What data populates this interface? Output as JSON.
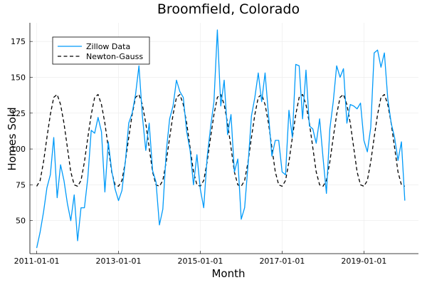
{
  "chart_data": {
    "type": "line",
    "title": "Broomfield, Colorado",
    "xlabel": "Month",
    "ylabel": "Homes Sold",
    "x_ticks": [
      "2011-01-01",
      "2013-01-01",
      "2015-01-01",
      "2017-01-01",
      "2019-01-01"
    ],
    "y_ticks": [
      50,
      75,
      100,
      125,
      150,
      175
    ],
    "xlim": [
      "2010-11-01",
      "2020-05-01"
    ],
    "ylim": [
      27,
      188
    ],
    "grid": true,
    "legend_position": "top-left",
    "series": [
      {
        "name": "Zillow Data",
        "color": "#009af9",
        "style": "solid",
        "x_start": "2011-01-01",
        "x_step": "1 month",
        "values": [
          31,
          42,
          56,
          73,
          82,
          108,
          66,
          89,
          78,
          62,
          50,
          68,
          36,
          59,
          59,
          80,
          113,
          111,
          122,
          112,
          70,
          105,
          85,
          72,
          64,
          71,
          91,
          118,
          125,
          138,
          158,
          123,
          99,
          118,
          85,
          77,
          47,
          58,
          98,
          121,
          130,
          148,
          140,
          136,
          112,
          99,
          75,
          96,
          72,
          59,
          94,
          115,
          133,
          183,
          130,
          148,
          110,
          124,
          84,
          93,
          51,
          59,
          89,
          123,
          136,
          153,
          133,
          153,
          124,
          95,
          106,
          106,
          84,
          82,
          127,
          108,
          159,
          158,
          121,
          155,
          116,
          114,
          104,
          121,
          94,
          69,
          114,
          133,
          158,
          150,
          156,
          118,
          131,
          130,
          128,
          132,
          106,
          98,
          115,
          167,
          169,
          157,
          167,
          135,
          118,
          108,
          92,
          105,
          64
        ]
      },
      {
        "name": "Newton-Gauss",
        "color": "#000000",
        "style": "dashed",
        "x_start": "2011-01-01",
        "x_step": "1 month",
        "values": [
          74,
          78,
          91,
          108,
          124,
          136,
          138,
          131,
          118,
          101,
          84,
          75,
          74,
          78,
          91,
          108,
          124,
          136,
          138,
          131,
          118,
          101,
          84,
          75,
          74,
          78,
          91,
          108,
          124,
          136,
          138,
          131,
          118,
          101,
          84,
          75,
          74,
          78,
          91,
          108,
          124,
          136,
          138,
          131,
          118,
          101,
          84,
          75,
          74,
          78,
          91,
          108,
          124,
          136,
          138,
          131,
          118,
          101,
          84,
          75,
          74,
          78,
          91,
          108,
          124,
          136,
          138,
          131,
          118,
          101,
          84,
          75,
          74,
          78,
          91,
          108,
          124,
          136,
          138,
          131,
          118,
          101,
          84,
          75,
          74,
          78,
          91,
          108,
          124,
          136,
          138,
          131,
          118,
          101,
          84,
          75,
          74,
          78,
          91,
          108,
          124,
          136,
          138,
          131,
          118,
          101,
          84,
          75,
          74
        ]
      }
    ]
  }
}
